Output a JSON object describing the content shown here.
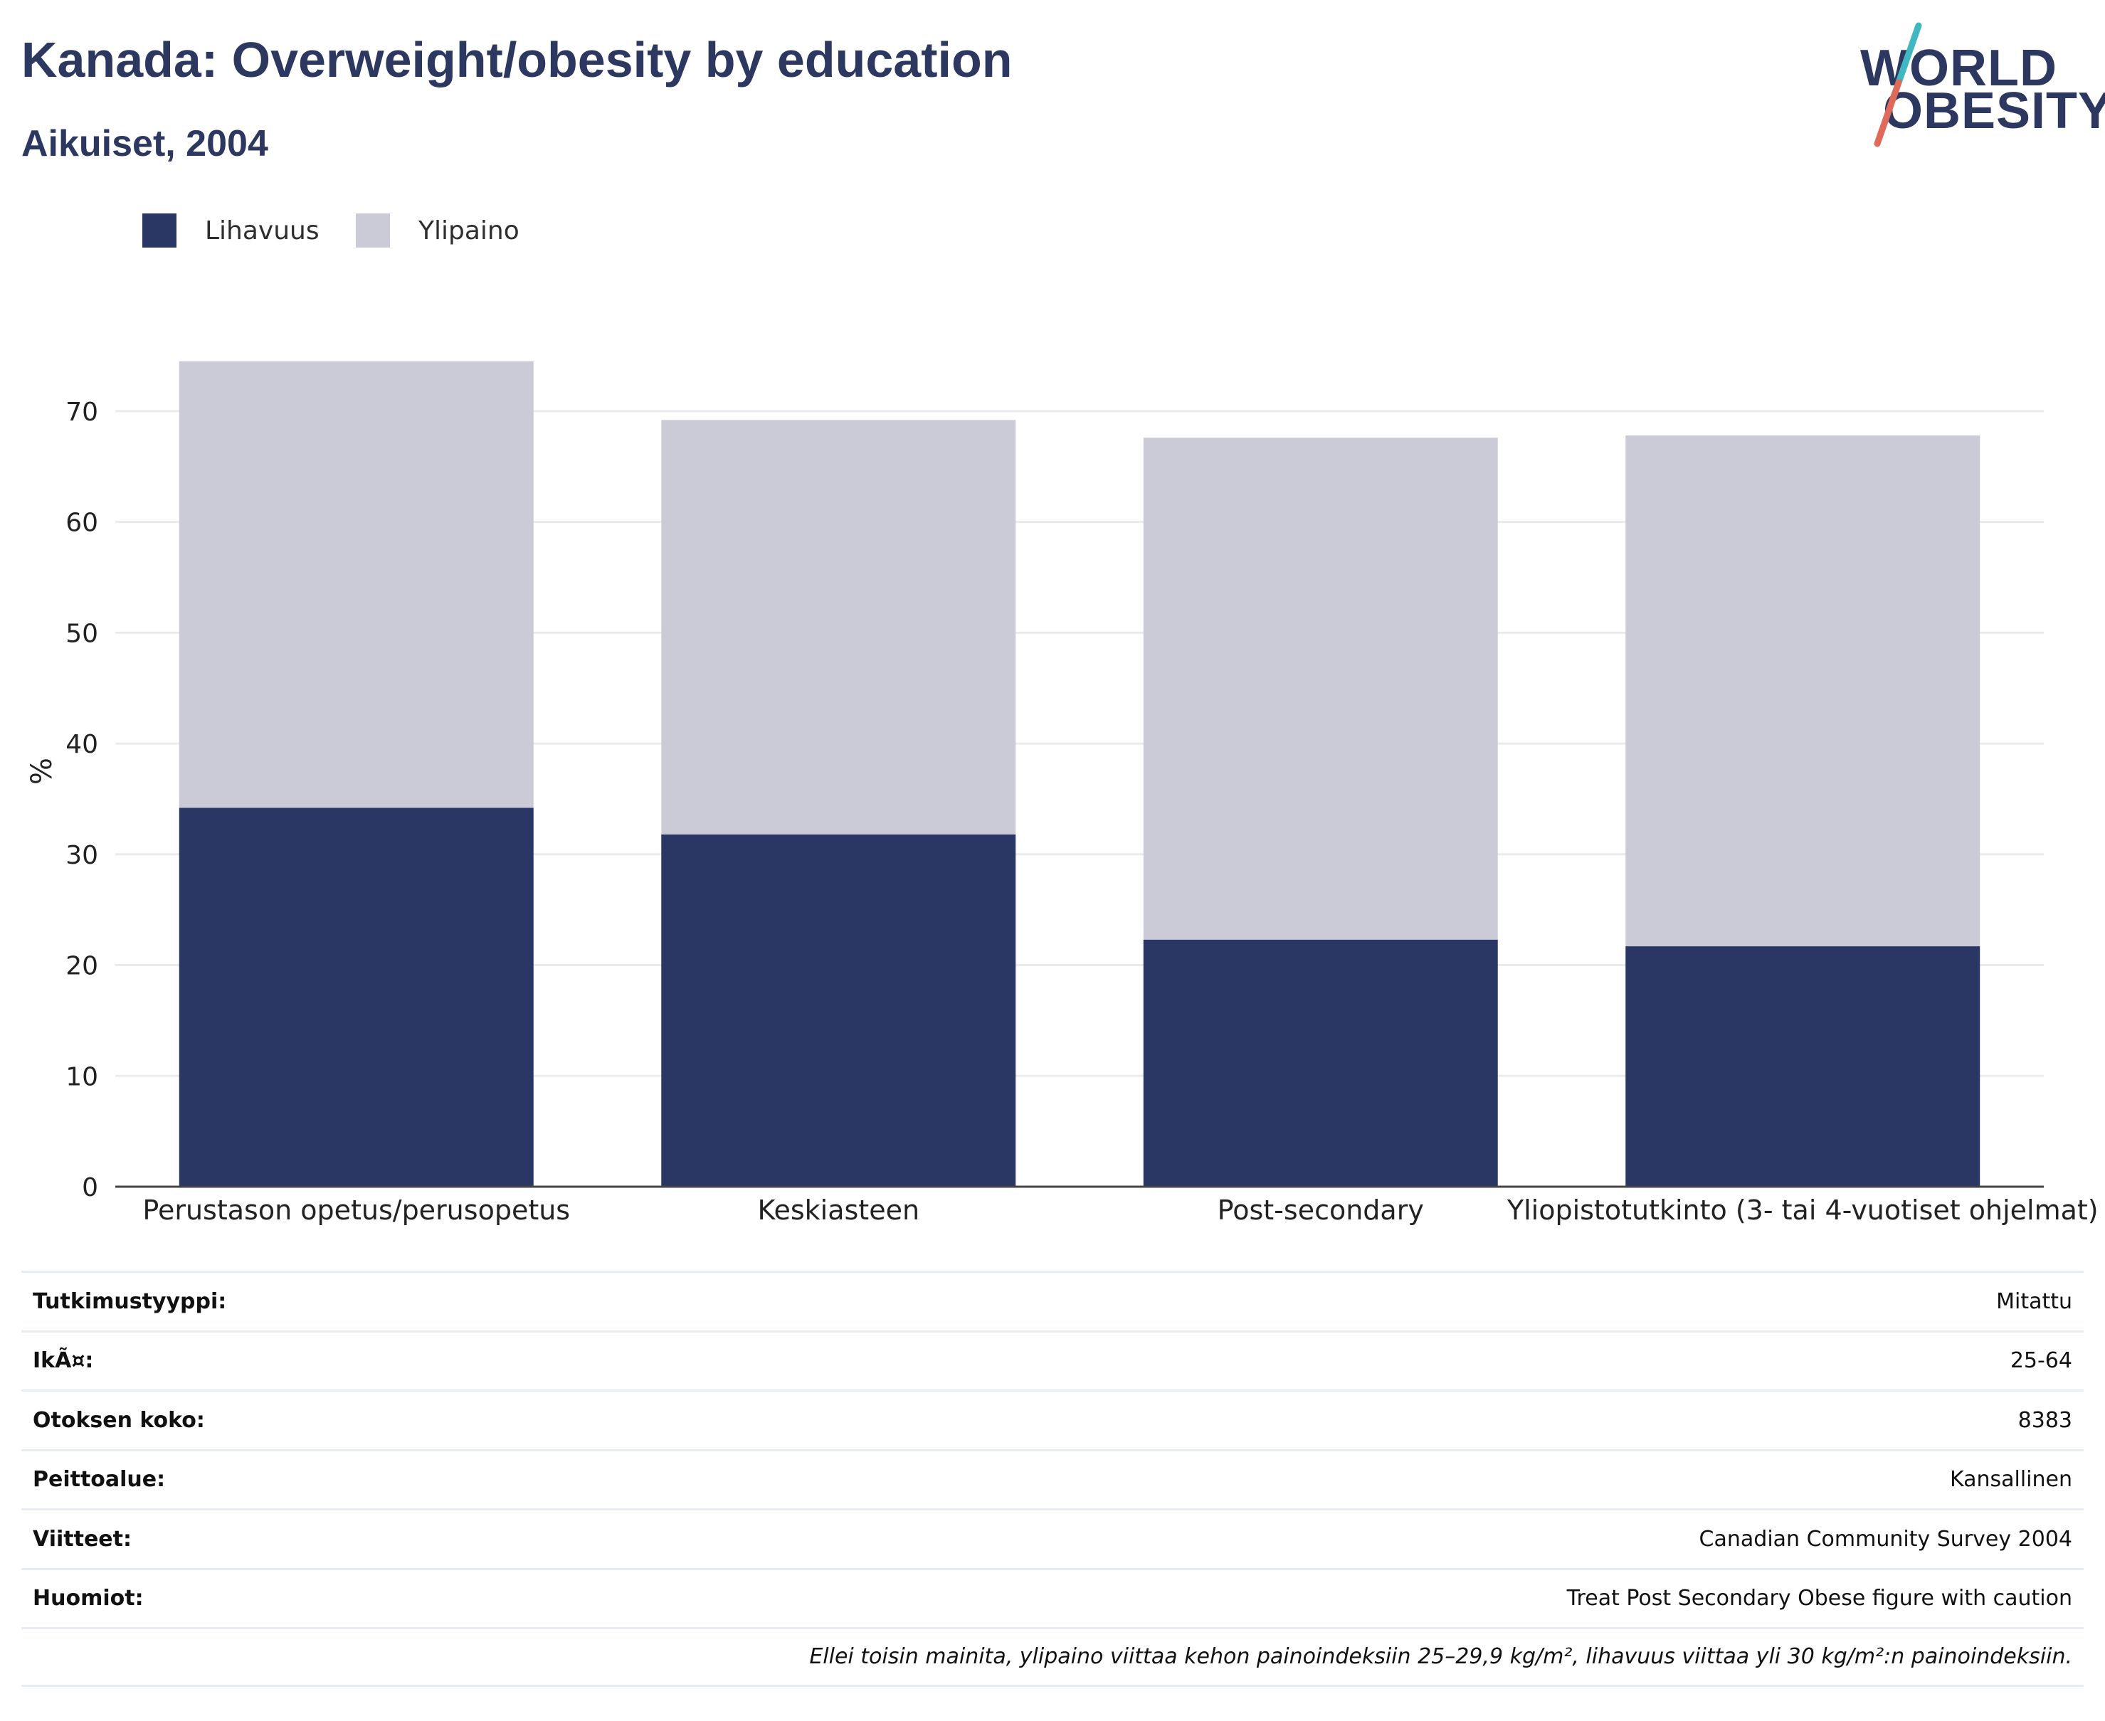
{
  "header": {
    "title": "Kanada: Overweight/obesity by education",
    "subtitle": "Aikuiset, 2004"
  },
  "logo": {
    "line1": "WORLD",
    "line2": "OBESITY",
    "accent_colors": [
      "#3fb8c2",
      "#e06a5a"
    ]
  },
  "colors": {
    "obesity": "#2a3664",
    "overweight": "#cacbd6",
    "grid": "#ebebeb",
    "axis": "#444444"
  },
  "legend": [
    {
      "label": "Lihavuus",
      "color": "#2a3664"
    },
    {
      "label": "Ylipaino",
      "color": "#cacbd6"
    }
  ],
  "chart_data": {
    "type": "bar",
    "stacked": true,
    "categories": [
      "Perustason opetus/perusopetus",
      "Keskiasteen",
      "Post-secondary",
      "Yliopistotutkinto (3- tai 4-vuotiset ohjelmat)"
    ],
    "series": [
      {
        "name": "Lihavuus",
        "values": [
          34.2,
          31.8,
          22.3,
          21.7
        ]
      },
      {
        "name": "Ylipaino",
        "values": [
          40.3,
          37.4,
          45.3,
          46.1
        ]
      }
    ],
    "ylabel": "%",
    "xlabel": "",
    "ylim": [
      0,
      75
    ],
    "yticks": [
      0,
      10,
      20,
      30,
      40,
      50,
      60,
      70
    ],
    "grid": true,
    "legend_position": "top-left"
  },
  "info": [
    {
      "label": "Tutkimustyyppi:",
      "value": "Mitattu"
    },
    {
      "label": "IkÃ¤:",
      "value": "25-64"
    },
    {
      "label": "Otoksen koko:",
      "value": "8383"
    },
    {
      "label": "Peittoalue:",
      "value": "Kansallinen"
    },
    {
      "label": "Viitteet:",
      "value": "Canadian Community Survey 2004"
    },
    {
      "label": "Huomiot:",
      "value": "Treat Post Secondary Obese figure with caution"
    }
  ],
  "footnote": "Ellei toisin mainita, ylipaino viittaa kehon painoindeksiin 25–29,9 kg/m², lihavuus viittaa yli 30 kg/m²:n painoindeksiin."
}
